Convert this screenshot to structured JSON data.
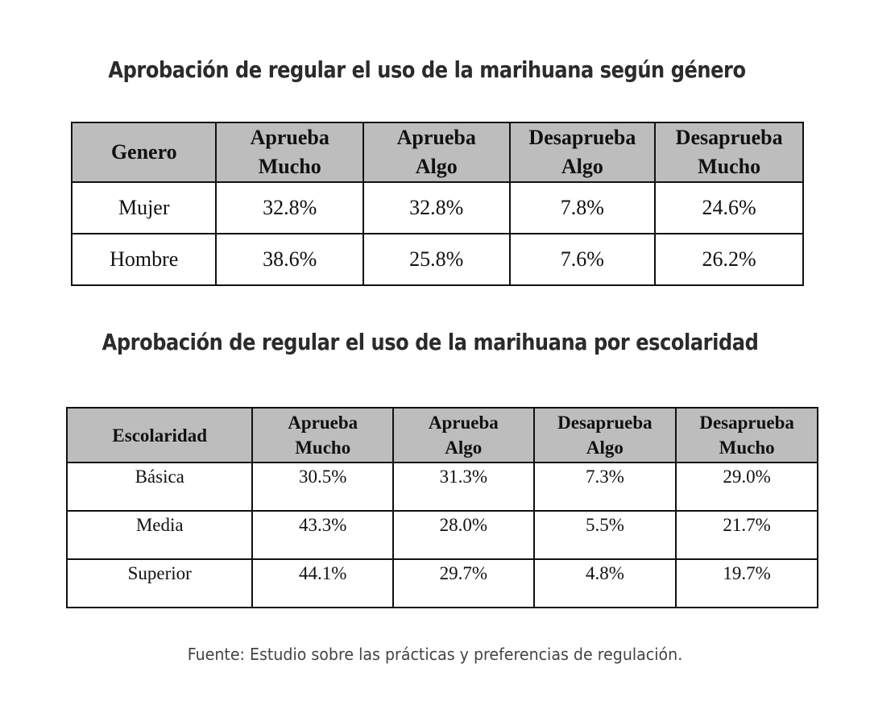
{
  "chart_data": [
    {
      "type": "table",
      "title": "Aprobación de regular el uso de la marihuana según género",
      "columns": [
        {
          "line1": "Genero",
          "line2": ""
        },
        {
          "line1": "Aprueba",
          "line2": "Mucho"
        },
        {
          "line1": "Aprueba",
          "line2": "Algo"
        },
        {
          "line1": "Desaprueba",
          "line2": "Algo"
        },
        {
          "line1": "Desaprueba",
          "line2": "Mucho"
        }
      ],
      "rows": [
        [
          "Mujer",
          "32.8%",
          "32.8%",
          "7.8%",
          "24.6%"
        ],
        [
          "Hombre",
          "38.6%",
          "25.8%",
          "7.6%",
          "26.2%"
        ]
      ]
    },
    {
      "type": "table",
      "title": "Aprobación de regular el uso de la marihuana por escolaridad",
      "columns": [
        {
          "line1": "Escolaridad",
          "line2": ""
        },
        {
          "line1": "Aprueba",
          "line2": "Mucho"
        },
        {
          "line1": "Aprueba",
          "line2": "Algo"
        },
        {
          "line1": "Desaprueba",
          "line2": "Algo"
        },
        {
          "line1": "Desaprueba",
          "line2": "Mucho"
        }
      ],
      "rows": [
        [
          "Básica",
          "30.5%",
          "31.3%",
          "7.3%",
          "29.0%"
        ],
        [
          "Media",
          "43.3%",
          "28.0%",
          "5.5%",
          "21.7%"
        ],
        [
          "Superior",
          "44.1%",
          "29.7%",
          "4.8%",
          "19.7%"
        ]
      ]
    }
  ],
  "source": "Fuente: Estudio sobre las prácticas y preferencias de regulación."
}
